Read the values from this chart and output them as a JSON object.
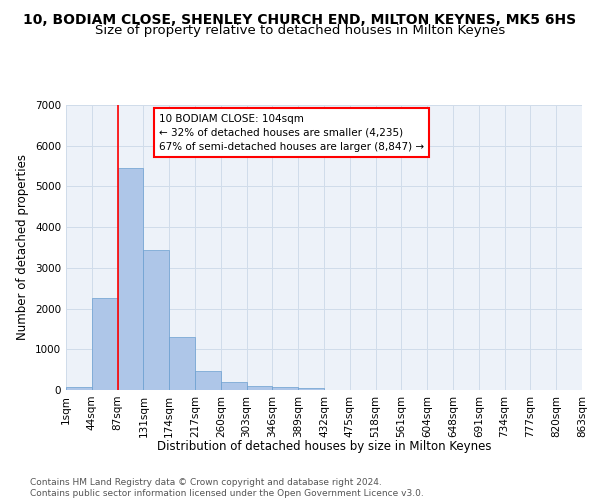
{
  "title": "10, BODIAM CLOSE, SHENLEY CHURCH END, MILTON KEYNES, MK5 6HS",
  "subtitle": "Size of property relative to detached houses in Milton Keynes",
  "xlabel": "Distribution of detached houses by size in Milton Keynes",
  "ylabel": "Number of detached properties",
  "bar_values": [
    75,
    2250,
    5450,
    3430,
    1300,
    470,
    190,
    100,
    65,
    50,
    0,
    0,
    0,
    0,
    0,
    0,
    0,
    0,
    0,
    0
  ],
  "bar_labels": [
    "1sqm",
    "44sqm",
    "87sqm",
    "131sqm",
    "174sqm",
    "217sqm",
    "260sqm",
    "303sqm",
    "346sqm",
    "389sqm",
    "432sqm",
    "475sqm",
    "518sqm",
    "561sqm",
    "604sqm",
    "648sqm",
    "691sqm",
    "734sqm",
    "777sqm",
    "820sqm",
    "863sqm"
  ],
  "bar_color": "#aec6e8",
  "bar_edge_color": "#6a9fd0",
  "grid_color": "#d0dcea",
  "background_color": "#edf2f9",
  "red_line_x": 2.0,
  "annotation_text": "10 BODIAM CLOSE: 104sqm\n← 32% of detached houses are smaller (4,235)\n67% of semi-detached houses are larger (8,847) →",
  "annotation_box_color": "white",
  "annotation_box_edge": "red",
  "ylim": [
    0,
    7000
  ],
  "yticks": [
    0,
    1000,
    2000,
    3000,
    4000,
    5000,
    6000,
    7000
  ],
  "footer": "Contains HM Land Registry data © Crown copyright and database right 2024.\nContains public sector information licensed under the Open Government Licence v3.0.",
  "title_fontsize": 10,
  "subtitle_fontsize": 9.5,
  "axis_label_fontsize": 8.5,
  "tick_fontsize": 7.5,
  "footer_fontsize": 6.5
}
